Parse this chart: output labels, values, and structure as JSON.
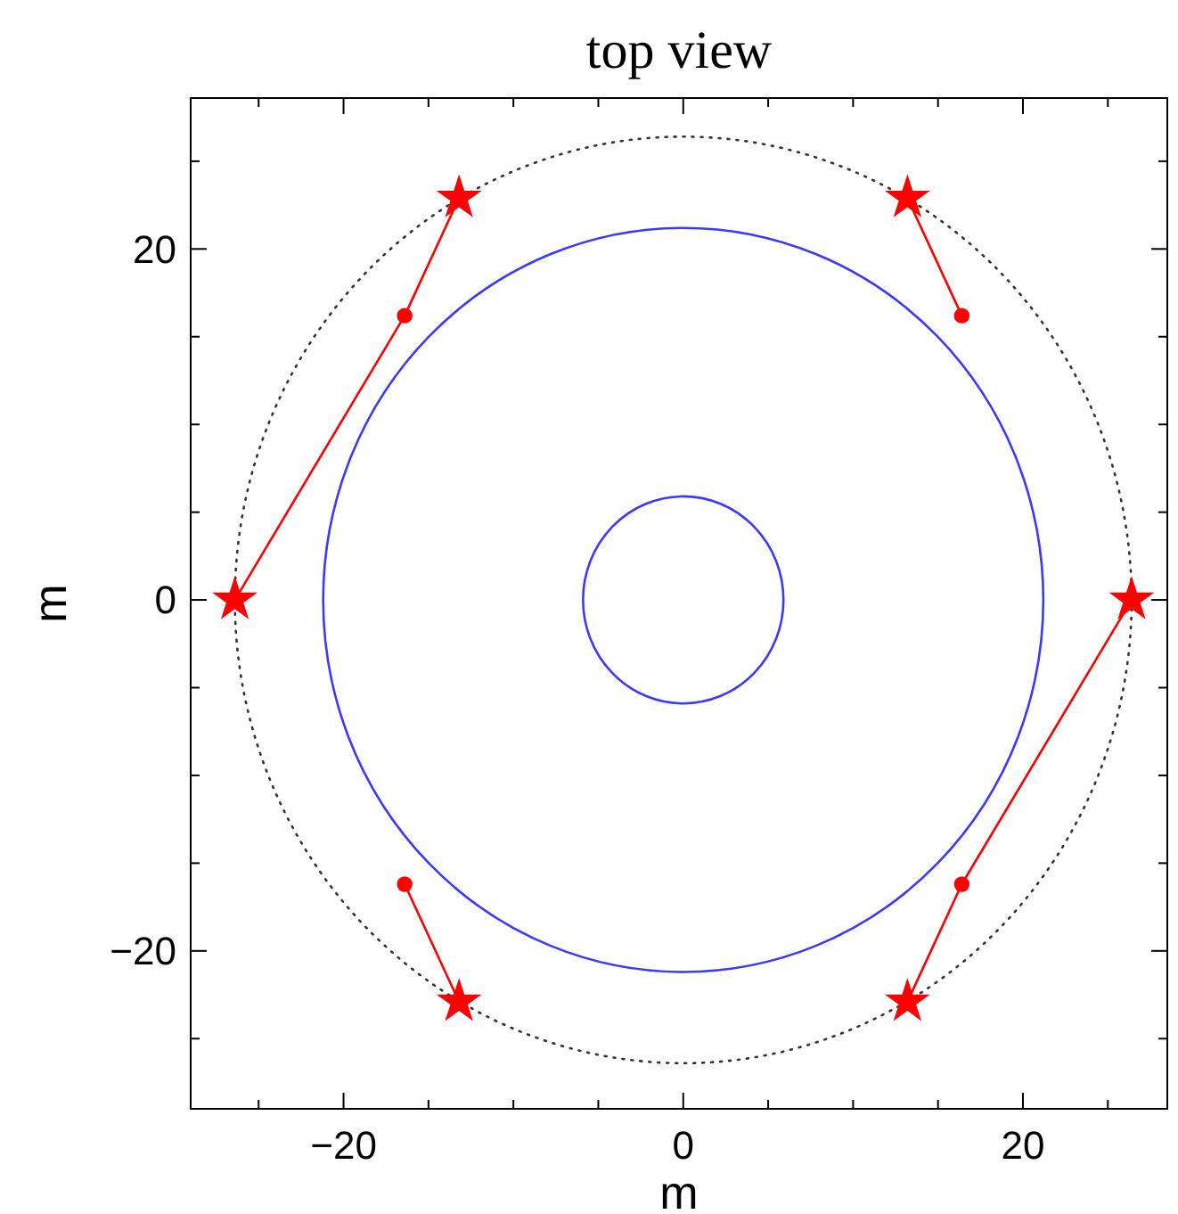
{
  "chart_data": {
    "type": "line",
    "title": "top view",
    "xlabel": "m",
    "ylabel": "m",
    "xlim": [
      -29,
      28.5
    ],
    "ylim": [
      -29,
      28.6
    ],
    "xticks": [
      {
        "value": -25,
        "label": null
      },
      -20,
      {
        "value": -15,
        "label": null
      },
      {
        "value": -10,
        "label": null
      },
      {
        "value": -5,
        "label": null
      },
      0,
      {
        "value": 5,
        "label": null
      },
      {
        "value": 10,
        "label": null
      },
      {
        "value": 15,
        "label": null
      },
      20,
      {
        "value": 25,
        "label": null
      }
    ],
    "yticks": [
      {
        "value": -25,
        "label": null
      },
      -20,
      {
        "value": -15,
        "label": null
      },
      {
        "value": -10,
        "label": null
      },
      {
        "value": -5,
        "label": null
      },
      0,
      {
        "value": 5,
        "label": null
      },
      {
        "value": 10,
        "label": null
      },
      {
        "value": 15,
        "label": null
      },
      20,
      {
        "value": 25,
        "label": null
      }
    ],
    "grid": false,
    "series": [
      {
        "color": "#ff0000",
        "line_style": "solid",
        "marker": "none",
        "x": [
          -26.4,
          -16.4,
          -13.2
        ],
        "values": [
          0,
          16.2,
          22.9
        ]
      },
      {
        "color": "#ff0000",
        "line_style": "solid",
        "marker": "none",
        "x": [
          16.4,
          13.2
        ],
        "values": [
          16.2,
          22.9
        ]
      },
      {
        "color": "#ff0000",
        "line_style": "solid",
        "marker": "none",
        "x": [
          -16.4,
          -13.2
        ],
        "values": [
          -16.2,
          -22.9
        ]
      },
      {
        "color": "#ff0000",
        "line_style": "solid",
        "marker": "none",
        "x": [
          26.4,
          16.4,
          13.2
        ],
        "values": [
          0,
          -16.2,
          -22.9
        ]
      },
      {
        "type": "scatter",
        "color": "#ff0000",
        "marker": "star",
        "x": [
          -26.4,
          -13.2,
          13.2,
          26.4,
          13.2,
          -13.2
        ],
        "values": [
          0,
          22.9,
          22.9,
          0,
          -22.9,
          -22.9
        ]
      },
      {
        "type": "scatter",
        "color": "#ff0000",
        "marker": "circle",
        "x": [
          -16.4,
          16.4,
          16.4,
          -16.4
        ],
        "values": [
          16.2,
          16.2,
          -16.2,
          -16.2
        ]
      }
    ]
  }
}
